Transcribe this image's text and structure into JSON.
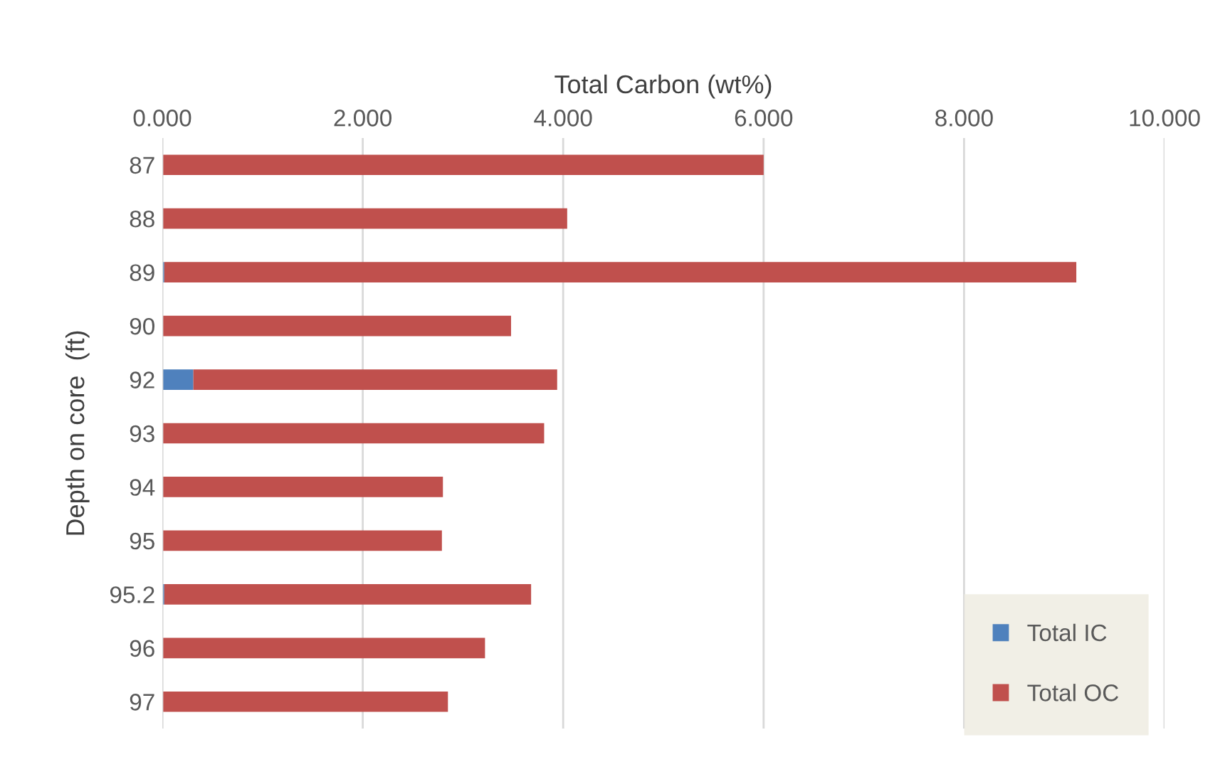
{
  "chart_data": {
    "type": "bar",
    "orientation": "horizontal",
    "stacked": true,
    "xlabel": "Total Carbon (wt%)",
    "ylabel": "Depth on core  (ft)",
    "categories": [
      "87",
      "88",
      "89",
      "90",
      "92",
      "93",
      "94",
      "95",
      "95.2",
      "96",
      "97"
    ],
    "series": [
      {
        "name": "Total IC",
        "color": "#4f81bd",
        "values": [
          0,
          0,
          0.02,
          0,
          0.31,
          0,
          0,
          0,
          0.02,
          0,
          0
        ]
      },
      {
        "name": "Total OC",
        "color": "#c0504d",
        "values": [
          6.0,
          4.04,
          9.1,
          3.48,
          3.63,
          3.81,
          2.8,
          2.79,
          3.66,
          3.22,
          2.85
        ]
      }
    ],
    "xlim": [
      0,
      10
    ],
    "xticks": [
      {
        "value": 0,
        "label": "0.000"
      },
      {
        "value": 2,
        "label": "2.000"
      },
      {
        "value": 4,
        "label": "4.000"
      },
      {
        "value": 6,
        "label": "6.000"
      },
      {
        "value": 8,
        "label": "8.000"
      },
      {
        "value": 10,
        "label": "10.000"
      }
    ],
    "grid": "x",
    "legend": "bottom right"
  }
}
